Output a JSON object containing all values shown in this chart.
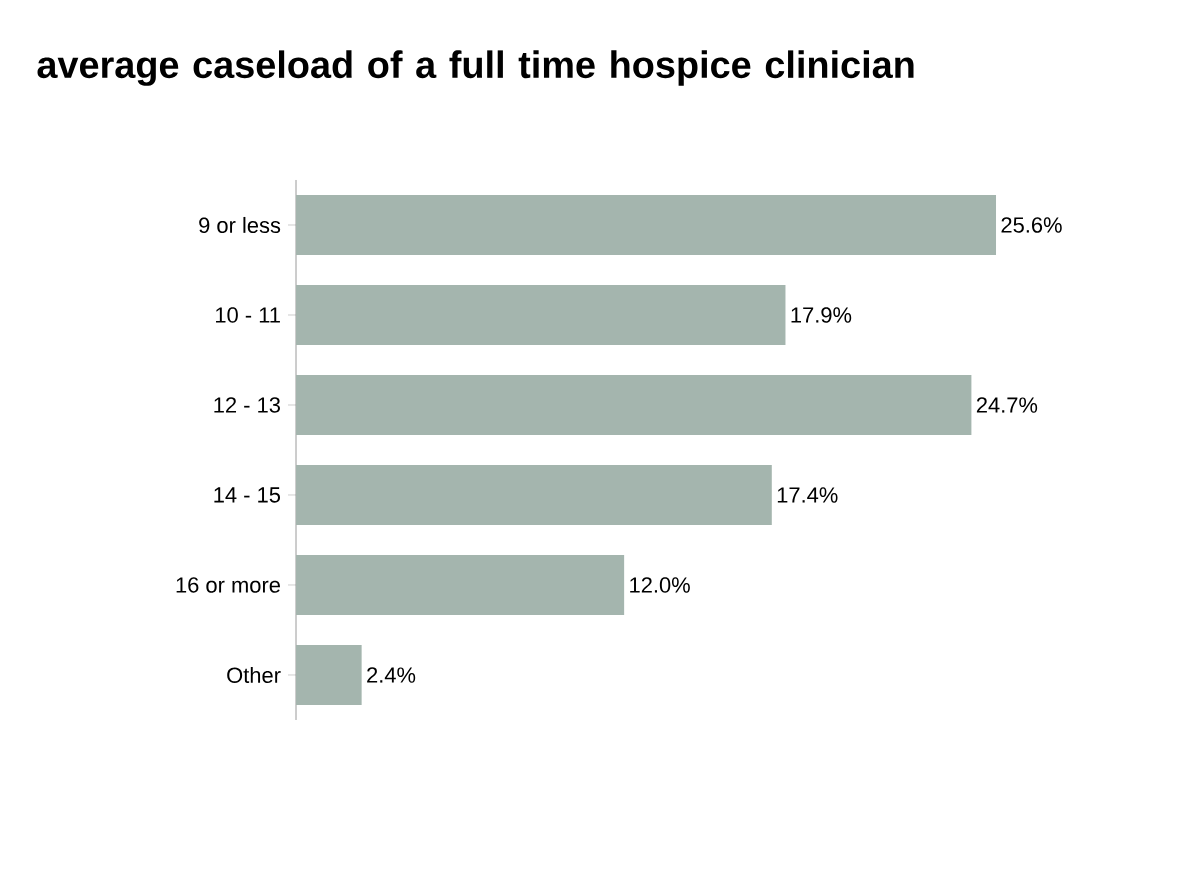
{
  "chart_data": {
    "type": "bar",
    "orientation": "horizontal",
    "title": "average caseload of a full time hospice clinician",
    "categories": [
      "9 or less",
      "10 - 11",
      "12 - 13",
      "14 - 15",
      "16 or more",
      "Other"
    ],
    "values": [
      25.6,
      17.9,
      24.7,
      17.4,
      12.0,
      2.4
    ],
    "value_labels": [
      "25.6%",
      "17.9%",
      "24.7%",
      "17.4%",
      "12.0%",
      "2.4%"
    ],
    "color": "#a4b5ae"
  }
}
